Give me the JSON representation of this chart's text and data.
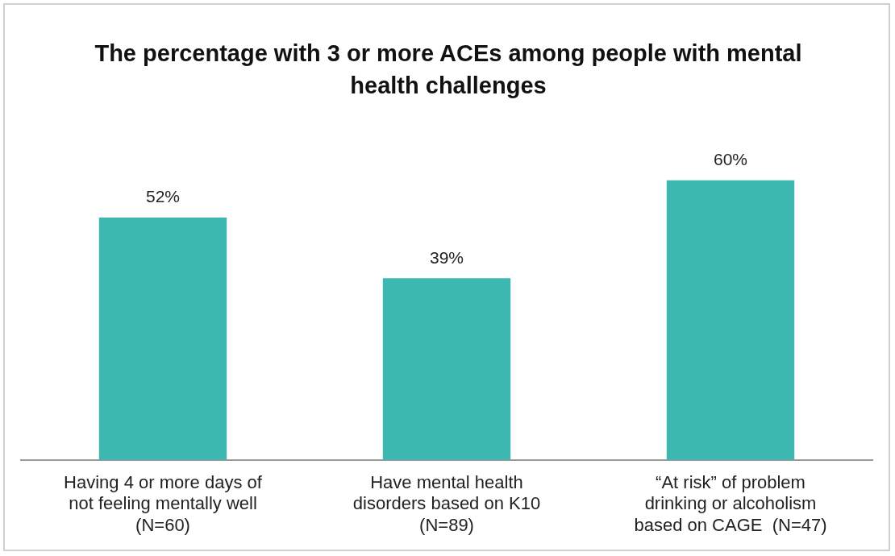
{
  "chart_data": {
    "type": "bar",
    "title": "The percentage with 3 or more ACEs among people with mental health challenges",
    "categories": [
      "Having 4 or more days of\nnot feeling mentally well\n(N=60)",
      "Have mental health\ndisorders based on K10\n(N=89)",
      "“At risk” of problem\ndrinking or alcoholism\nbased on CAGE  (N=47)"
    ],
    "values": [
      52,
      39,
      60
    ],
    "value_labels": [
      "52%",
      "39%",
      "60%"
    ],
    "color": "#3cb8b0",
    "grid": false,
    "legend": false
  }
}
